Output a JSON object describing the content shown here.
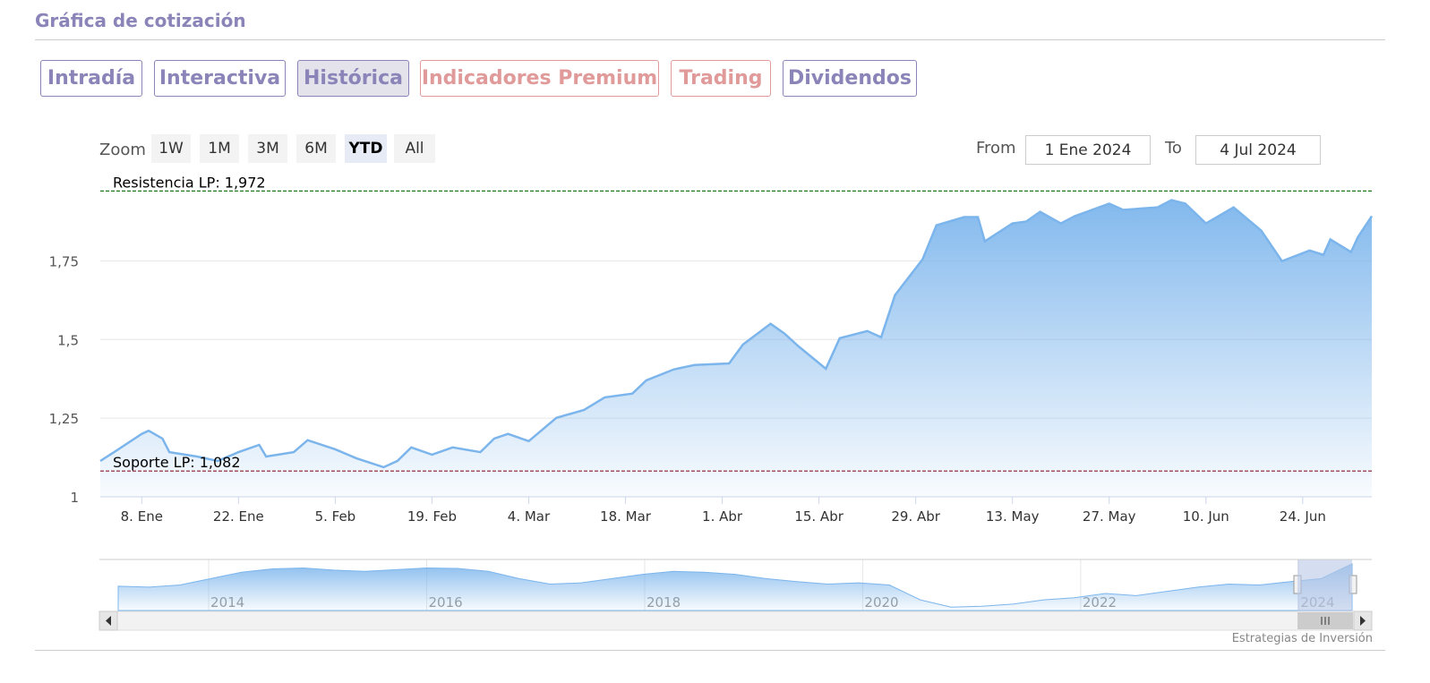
{
  "header": {
    "title": "Gráfica de cotización"
  },
  "tabs": [
    "Intradía",
    "Interactiva",
    "Histórica",
    "Indicadores Premium",
    "Trading",
    "Dividendos"
  ],
  "range_selector": {
    "zoom_label": "Zoom",
    "buttons": [
      "1W",
      "1M",
      "3M",
      "6M",
      "YTD",
      "All"
    ],
    "from_label": "From",
    "from": "1 Ene 2024",
    "to_label": "To",
    "to": "4 Jul 2024"
  },
  "credit": "Estrategias de Inversión",
  "chart_data": {
    "type": "area",
    "color": "#7cb5ec",
    "grid": true,
    "x": [
      "2024-01-02",
      "2024-01-04",
      "2024-01-08",
      "2024-01-09",
      "2024-01-11",
      "2024-01-12",
      "2024-01-16",
      "2024-01-19",
      "2024-01-22",
      "2024-01-25",
      "2024-01-26",
      "2024-01-30",
      "2024-02-01",
      "2024-02-05",
      "2024-02-08",
      "2024-02-12",
      "2024-02-14",
      "2024-02-16",
      "2024-02-19",
      "2024-02-22",
      "2024-02-26",
      "2024-02-28",
      "2024-03-01",
      "2024-03-04",
      "2024-03-06",
      "2024-03-08",
      "2024-03-12",
      "2024-03-15",
      "2024-03-19",
      "2024-03-21",
      "2024-03-25",
      "2024-03-28",
      "2024-04-02",
      "2024-04-04",
      "2024-04-08",
      "2024-04-10",
      "2024-04-12",
      "2024-04-16",
      "2024-04-18",
      "2024-04-22",
      "2024-04-24",
      "2024-04-26",
      "2024-04-30",
      "2024-05-02",
      "2024-05-06",
      "2024-05-08",
      "2024-05-09",
      "2024-05-13",
      "2024-05-15",
      "2024-05-17",
      "2024-05-20",
      "2024-05-22",
      "2024-05-27",
      "2024-05-29",
      "2024-06-03",
      "2024-06-05",
      "2024-06-07",
      "2024-06-10",
      "2024-06-14",
      "2024-06-18",
      "2024-06-21",
      "2024-06-25",
      "2024-06-27",
      "2024-06-28",
      "2024-07-01",
      "2024-07-02",
      "2024-07-04"
    ],
    "values": [
      1.114,
      1.142,
      1.2,
      1.21,
      1.185,
      1.142,
      1.128,
      1.114,
      1.142,
      1.165,
      1.128,
      1.142,
      1.18,
      1.151,
      1.123,
      1.094,
      1.114,
      1.157,
      1.134,
      1.157,
      1.142,
      1.185,
      1.2,
      1.177,
      1.214,
      1.251,
      1.276,
      1.316,
      1.328,
      1.37,
      1.405,
      1.419,
      1.424,
      1.484,
      1.55,
      1.519,
      1.479,
      1.407,
      1.504,
      1.527,
      1.507,
      1.641,
      1.755,
      1.863,
      1.889,
      1.889,
      1.812,
      1.869,
      1.875,
      1.906,
      1.869,
      1.892,
      1.932,
      1.912,
      1.92,
      1.943,
      1.932,
      1.869,
      1.92,
      1.846,
      1.749,
      1.783,
      1.769,
      1.818,
      1.778,
      1.826,
      1.892
    ],
    "xlim": [
      "2024-01-02",
      "2024-07-04"
    ],
    "xticks": [
      {
        "value": "2024-01-08",
        "label": "8. Ene"
      },
      {
        "value": "2024-01-22",
        "label": "22. Ene"
      },
      {
        "value": "2024-02-05",
        "label": "5. Feb"
      },
      {
        "value": "2024-02-19",
        "label": "19. Feb"
      },
      {
        "value": "2024-03-04",
        "label": "4. Mar"
      },
      {
        "value": "2024-03-18",
        "label": "18. Mar"
      },
      {
        "value": "2024-04-01",
        "label": "1. Abr"
      },
      {
        "value": "2024-04-15",
        "label": "15. Abr"
      },
      {
        "value": "2024-04-29",
        "label": "29. Abr"
      },
      {
        "value": "2024-05-13",
        "label": "13. May"
      },
      {
        "value": "2024-05-27",
        "label": "27. May"
      },
      {
        "value": "2024-06-10",
        "label": "10. Jun"
      },
      {
        "value": "2024-06-24",
        "label": "24. Jun"
      }
    ],
    "ylim": [
      1,
      2.01
    ],
    "yticks": [
      1,
      {
        "value": 1.25,
        "label": "1,25"
      },
      {
        "value": 1.5,
        "label": "1,5"
      },
      {
        "value": 1.75,
        "label": "1,75"
      }
    ],
    "plot_lines": [
      {
        "value": 1.972,
        "label": "Resistencia LP: 1,972",
        "color": "#1a7a1a"
      },
      {
        "value": 1.082,
        "label": "Soporte LP: 1,082",
        "color": "#8b1a2a"
      }
    ],
    "navigator": {
      "xlim": [
        2013.17,
        2024.49
      ],
      "xticks": [
        2014,
        2016,
        2018,
        2020,
        2022,
        2024
      ],
      "ylim": [
        0.8,
        2.0
      ],
      "values": [
        1.37,
        1.35,
        1.4,
        1.55,
        1.7,
        1.78,
        1.8,
        1.75,
        1.72,
        1.76,
        1.8,
        1.79,
        1.72,
        1.55,
        1.42,
        1.45,
        1.55,
        1.65,
        1.72,
        1.7,
        1.65,
        1.55,
        1.48,
        1.42,
        1.45,
        1.4,
        1.05,
        0.88,
        0.9,
        0.95,
        1.05,
        1.1,
        1.2,
        1.15,
        1.25,
        1.35,
        1.42,
        1.4,
        1.48,
        1.55,
        1.9
      ]
    }
  }
}
